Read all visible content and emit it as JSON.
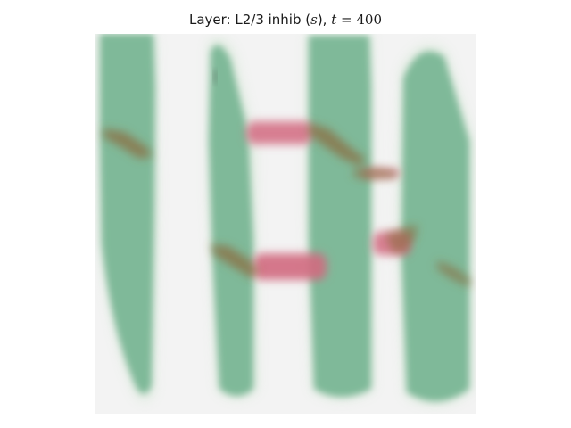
{
  "title": {
    "prefix": "Layer: L2/3 inhib (",
    "var": "s",
    "mid": "), ",
    "time_var": "t",
    "eq": " = ",
    "time_value": "400"
  },
  "colors": {
    "background_field": "#f3f3f3",
    "green": "#7fb999",
    "red": "#d26a80",
    "brown": "#8b6a3c"
  }
}
